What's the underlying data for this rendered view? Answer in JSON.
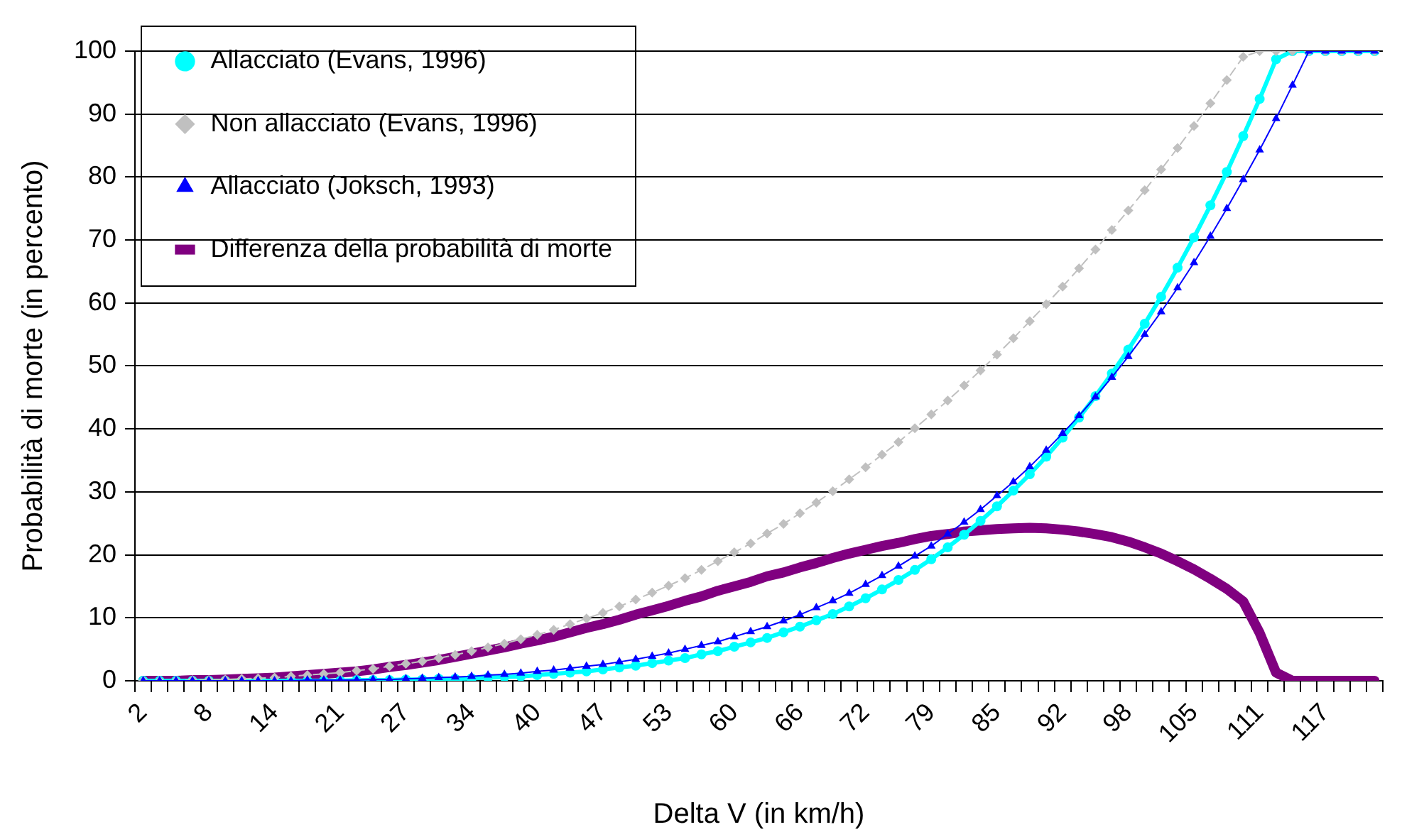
{
  "chart_data": {
    "type": "line",
    "xlabel": "Delta V (in km/h)",
    "ylabel": "Probabilità di morte (in percento)",
    "categories": [
      "2",
      null,
      null,
      null,
      "8",
      null,
      null,
      null,
      "14",
      null,
      null,
      null,
      "21",
      null,
      null,
      null,
      "27",
      null,
      null,
      null,
      "34",
      null,
      null,
      null,
      "40",
      null,
      null,
      null,
      "47",
      null,
      null,
      null,
      "53",
      null,
      null,
      null,
      "60",
      null,
      null,
      null,
      "66",
      null,
      null,
      null,
      "72",
      null,
      null,
      null,
      "79",
      null,
      null,
      null,
      "85",
      null,
      null,
      null,
      "92",
      null,
      null,
      null,
      "98",
      null,
      null,
      null,
      "105",
      null,
      null,
      null,
      "111",
      null,
      null,
      null,
      "117",
      null,
      null,
      null
    ],
    "ylim": [
      0,
      100
    ],
    "yticks": [
      0,
      10,
      20,
      30,
      40,
      50,
      60,
      70,
      80,
      90,
      100
    ],
    "grid": "y",
    "legend": "top left",
    "series": [
      {
        "name": "Allacciato (Evans, 1996)",
        "color": "#00ffff",
        "marker": "circle",
        "line_style": "solid",
        "values": [
          0,
          0,
          0,
          0,
          0,
          0,
          0,
          0,
          0,
          0,
          0,
          0,
          0,
          0.1,
          0.1,
          0.1,
          0.2,
          0.2,
          0.3,
          0.3,
          0.4,
          0.5,
          0.6,
          0.7,
          0.9,
          1.1,
          1.3,
          1.5,
          1.8,
          2.1,
          2.4,
          2.8,
          3.2,
          3.6,
          4.2,
          4.7,
          5.4,
          6.1,
          6.8,
          7.7,
          8.6,
          9.6,
          10.6,
          11.8,
          13.1,
          14.5,
          16.0,
          17.6,
          19.3,
          21.2,
          23.2,
          25.4,
          27.7,
          30.2,
          32.8,
          35.6,
          38.6,
          41.8,
          45.2,
          48.8,
          52.6,
          56.7,
          61.0,
          65.6,
          70.4,
          75.5,
          80.8,
          86.5,
          92.4,
          98.7,
          100,
          100,
          100,
          100,
          100,
          100
        ]
      },
      {
        "name": "Non allacciato (Evans, 1996)",
        "color": "#c0c0c0",
        "marker": "diamond",
        "line_style": "dashed",
        "values": [
          0,
          0,
          0,
          0.1,
          0.1,
          0.2,
          0.3,
          0.4,
          0.5,
          0.7,
          0.9,
          1.1,
          1.3,
          1.6,
          1.9,
          2.3,
          2.7,
          3.1,
          3.6,
          4.1,
          4.7,
          5.3,
          5.9,
          6.6,
          7.3,
          8.1,
          9.0,
          9.9,
          10.8,
          11.8,
          12.9,
          14.0,
          15.1,
          16.3,
          17.6,
          19.0,
          20.4,
          21.8,
          23.4,
          24.9,
          26.6,
          28.3,
          30.1,
          32.0,
          33.9,
          35.9,
          37.9,
          40.1,
          42.3,
          44.5,
          46.9,
          49.3,
          51.8,
          54.4,
          57.1,
          59.8,
          62.6,
          65.5,
          68.5,
          71.6,
          74.7,
          77.9,
          81.2,
          84.6,
          88.1,
          91.7,
          95.4,
          99.1,
          100,
          100,
          100,
          100,
          100,
          100,
          100,
          100
        ]
      },
      {
        "name": "Allacciato (Joksch, 1993)",
        "color": "#0000ff",
        "marker": "triangle",
        "line_style": "solid",
        "values": [
          0,
          0,
          0,
          0,
          0,
          0,
          0,
          0,
          0,
          0,
          0.1,
          0.1,
          0.1,
          0.1,
          0.2,
          0.2,
          0.3,
          0.4,
          0.5,
          0.6,
          0.7,
          0.9,
          1.0,
          1.2,
          1.5,
          1.7,
          2.0,
          2.3,
          2.6,
          3.0,
          3.4,
          3.9,
          4.4,
          5.0,
          5.6,
          6.2,
          7.0,
          7.8,
          8.6,
          9.5,
          10.5,
          11.6,
          12.7,
          13.9,
          15.3,
          16.7,
          18.2,
          19.8,
          21.4,
          23.3,
          25.2,
          27.2,
          29.4,
          31.6,
          34.0,
          36.6,
          39.3,
          42.1,
          45.1,
          48.2,
          51.5,
          55.0,
          58.6,
          62.4,
          66.4,
          70.6,
          75.0,
          79.6,
          84.3,
          89.3,
          94.6,
          100,
          100,
          100,
          100,
          100
        ]
      },
      {
        "name": "Differenza della probabilità di morte",
        "color": "#800080",
        "marker": "none",
        "line_style": "solid",
        "values": [
          0,
          0,
          0,
          0.1,
          0.1,
          0.2,
          0.3,
          0.4,
          0.5,
          0.7,
          0.9,
          1.1,
          1.3,
          1.5,
          1.8,
          2.2,
          2.5,
          2.9,
          3.3,
          3.8,
          4.3,
          4.8,
          5.3,
          5.9,
          6.4,
          7.0,
          7.7,
          8.4,
          9.0,
          9.7,
          10.5,
          11.2,
          11.9,
          12.7,
          13.4,
          14.3,
          15.0,
          15.7,
          16.6,
          17.2,
          18.0,
          18.7,
          19.5,
          20.2,
          20.8,
          21.4,
          21.9,
          22.5,
          23.0,
          23.3,
          23.7,
          23.9,
          24.1,
          24.2,
          24.3,
          24.2,
          24.0,
          23.7,
          23.3,
          22.8,
          22.1,
          21.2,
          20.2,
          19.0,
          17.7,
          16.2,
          14.6,
          12.6,
          7.6,
          1.3,
          0,
          0,
          0,
          0,
          0,
          0
        ]
      }
    ]
  }
}
